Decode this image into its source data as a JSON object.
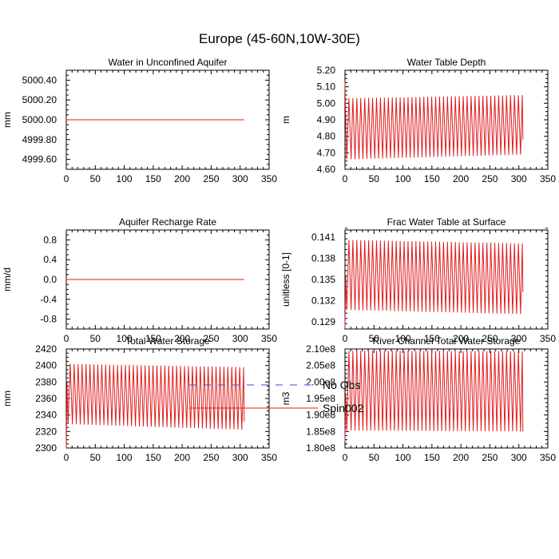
{
  "figure": {
    "title": "Europe (45-60N,10W-30E)",
    "series_colors": {
      "No Obs": "#4a4ad0",
      "Spin002": "#e01b1b"
    },
    "legend": [
      {
        "label": "No Obs",
        "style": "dashed",
        "color": "#4a4ad0"
      },
      {
        "label": "Spin002",
        "style": "solid",
        "color": "#e01b1b"
      }
    ]
  },
  "chart_data": [
    {
      "type": "line",
      "title": "Water in Unconfined Aquifer",
      "xlabel": "",
      "ylabel": "mm",
      "xlim": [
        0,
        350
      ],
      "ylim": [
        4999.5,
        5000.5
      ],
      "xticks": [
        0,
        50,
        100,
        150,
        200,
        250,
        300,
        350
      ],
      "yticks": [
        4999.6,
        4999.8,
        5000.0,
        5000.2,
        5000.4
      ],
      "ytick_labels": [
        "4999.60",
        "4999.80",
        "5000.00",
        "5000.20",
        "5000.40"
      ],
      "series": [
        {
          "name": "Spin002",
          "kind": "constant",
          "value": 5000.0,
          "x_end": 307
        }
      ]
    },
    {
      "type": "line",
      "title": "Water Table Depth",
      "xlabel": "",
      "ylabel": "m",
      "xlim": [
        0,
        350
      ],
      "ylim": [
        4.6,
        5.2
      ],
      "xticks": [
        0,
        50,
        100,
        150,
        200,
        250,
        300,
        350
      ],
      "yticks": [
        4.6,
        4.7,
        4.8,
        4.9,
        5.0,
        5.1,
        5.2
      ],
      "ytick_labels": [
        "4.60",
        "4.70",
        "4.80",
        "4.90",
        "5.00",
        "5.10",
        "5.20"
      ],
      "series": [
        {
          "name": "Spin002",
          "kind": "seasonal",
          "x_start": 0,
          "x_end": 307,
          "period": 6.8,
          "start_value": 5.13,
          "first_peak": 4.9,
          "peak_start": 5.03,
          "peak_end": 5.05,
          "trough_start": 4.66,
          "trough_end": 4.69,
          "end_value": 4.78
        }
      ]
    },
    {
      "type": "line",
      "title": "Aquifer Recharge Rate",
      "xlabel": "",
      "ylabel": "mm/d",
      "xlim": [
        0,
        350
      ],
      "ylim": [
        -1.0,
        1.0
      ],
      "xticks": [
        0,
        50,
        100,
        150,
        200,
        250,
        300,
        350
      ],
      "yticks": [
        -0.8,
        -0.4,
        0.0,
        0.4,
        0.8
      ],
      "ytick_labels": [
        "-0.8",
        "-0.4",
        "0.0",
        "0.4",
        "0.8"
      ],
      "series": [
        {
          "name": "Spin002",
          "kind": "constant",
          "value": 0.0,
          "x_end": 307
        }
      ]
    },
    {
      "type": "line",
      "title": "Frac Water Table at Surface",
      "xlabel": "",
      "ylabel": "unitless [0-1]",
      "xlim": [
        0,
        350
      ],
      "ylim": [
        0.128,
        0.142
      ],
      "xticks": [
        0,
        50,
        100,
        150,
        200,
        250,
        300,
        350
      ],
      "yticks": [
        0.129,
        0.132,
        0.135,
        0.138,
        0.141
      ],
      "ytick_labels": [
        "0.129",
        "0.132",
        "0.135",
        "0.138",
        "0.141"
      ],
      "series": [
        {
          "name": "Spin002",
          "kind": "seasonal",
          "x_start": 0,
          "x_end": 307,
          "period": 6.8,
          "start_value": 0.1282,
          "first_peak": 0.1355,
          "peak_start": 0.1406,
          "peak_end": 0.1401,
          "trough_start": 0.1307,
          "trough_end": 0.1301,
          "end_value": 0.1332
        }
      ]
    },
    {
      "type": "line",
      "title": "Total Water Storage",
      "xlabel": "",
      "ylabel": "mm",
      "xlim": [
        0,
        350
      ],
      "ylim": [
        2300,
        2420
      ],
      "xticks": [
        0,
        50,
        100,
        150,
        200,
        250,
        300,
        350
      ],
      "yticks": [
        2300,
        2320,
        2340,
        2360,
        2380,
        2400,
        2420
      ],
      "ytick_labels": [
        "2300",
        "2320",
        "2340",
        "2360",
        "2380",
        "2400",
        "2420"
      ],
      "series": [
        {
          "name": "Spin002",
          "kind": "seasonal",
          "x_start": 0,
          "x_end": 307,
          "period": 6.8,
          "start_value": 2300,
          "first_peak": 2380,
          "peak_start": 2402,
          "peak_end": 2398,
          "trough_start": 2329,
          "trough_end": 2322,
          "end_value": 2332
        }
      ]
    },
    {
      "type": "line",
      "title": "River Channel Total Water Storage",
      "xlabel": "",
      "ylabel": "m3",
      "xlim": [
        0,
        350
      ],
      "ylim": [
        180000000,
        210000000
      ],
      "xticks": [
        0,
        50,
        100,
        150,
        200,
        250,
        300,
        350
      ],
      "yticks": [
        180000000,
        185000000,
        190000000,
        195000000,
        200000000,
        205000000,
        210000000
      ],
      "ytick_labels": [
        "1.80e8",
        "1.85e8",
        "1.90e8",
        "1.95e8",
        "2.00e8",
        "2.05e8",
        "2.10e8"
      ],
      "series": [
        {
          "name": "Spin002",
          "kind": "seasonal",
          "x_start": 0,
          "x_end": 307,
          "period": 6.8,
          "start_value": 182000000,
          "first_peak": 196000000,
          "peak_start": 209500000,
          "peak_end": 209300000,
          "trough_start": 185300000,
          "trough_end": 185000000,
          "end_value": 185000000
        }
      ]
    }
  ]
}
